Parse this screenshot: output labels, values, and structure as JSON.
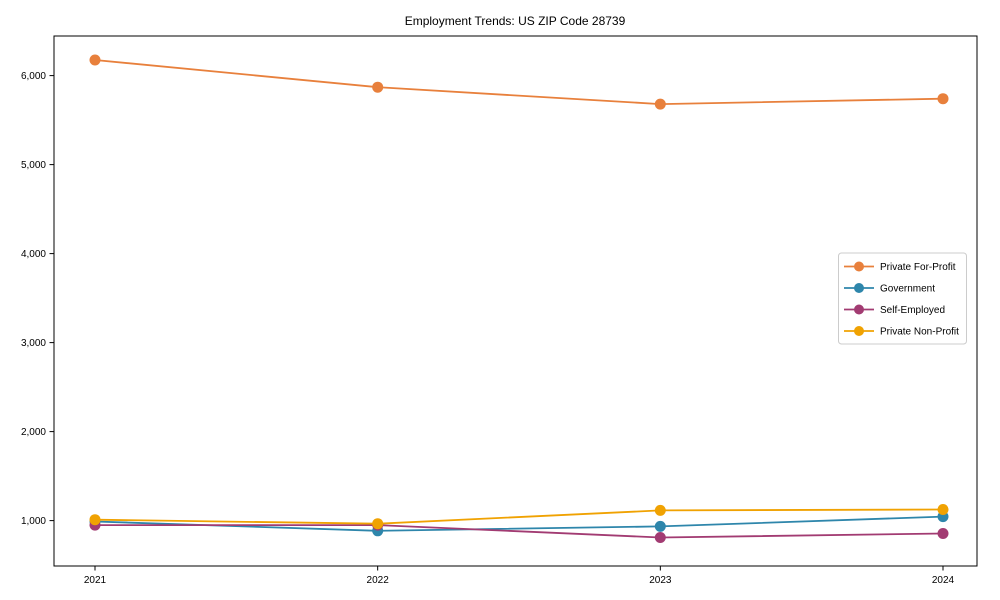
{
  "chart_data": {
    "type": "line",
    "title": "Employment Trends: US ZIP Code 28739",
    "xlabel": "",
    "ylabel": "",
    "x": [
      2021,
      2022,
      2023,
      2024
    ],
    "x_tick_labels": [
      "2021",
      "2022",
      "2023",
      "2024"
    ],
    "series": [
      {
        "name": "Private For-Profit",
        "color": "#E8803C",
        "values": [
          6175,
          5870,
          5680,
          5740
        ]
      },
      {
        "name": "Government",
        "color": "#2E86AB",
        "values": [
          990,
          885,
          935,
          1045
        ]
      },
      {
        "name": "Self-Employed",
        "color": "#A23B72",
        "values": [
          950,
          950,
          810,
          855
        ]
      },
      {
        "name": "Private Non-Profit",
        "color": "#F0A202",
        "values": [
          1010,
          965,
          1115,
          1125
        ]
      }
    ],
    "ylim": [
      490,
      6445
    ],
    "yticks": [
      1000,
      2000,
      3000,
      4000,
      5000,
      6000
    ],
    "ytick_labels": [
      "1,000",
      "2,000",
      "3,000",
      "4,000",
      "5,000",
      "6,000"
    ],
    "grid": false,
    "legend_position": "center-right",
    "marker": "circle",
    "axis_color": "#000000",
    "legend_border_color": "#cccccc",
    "background_color": "#ffffff"
  }
}
